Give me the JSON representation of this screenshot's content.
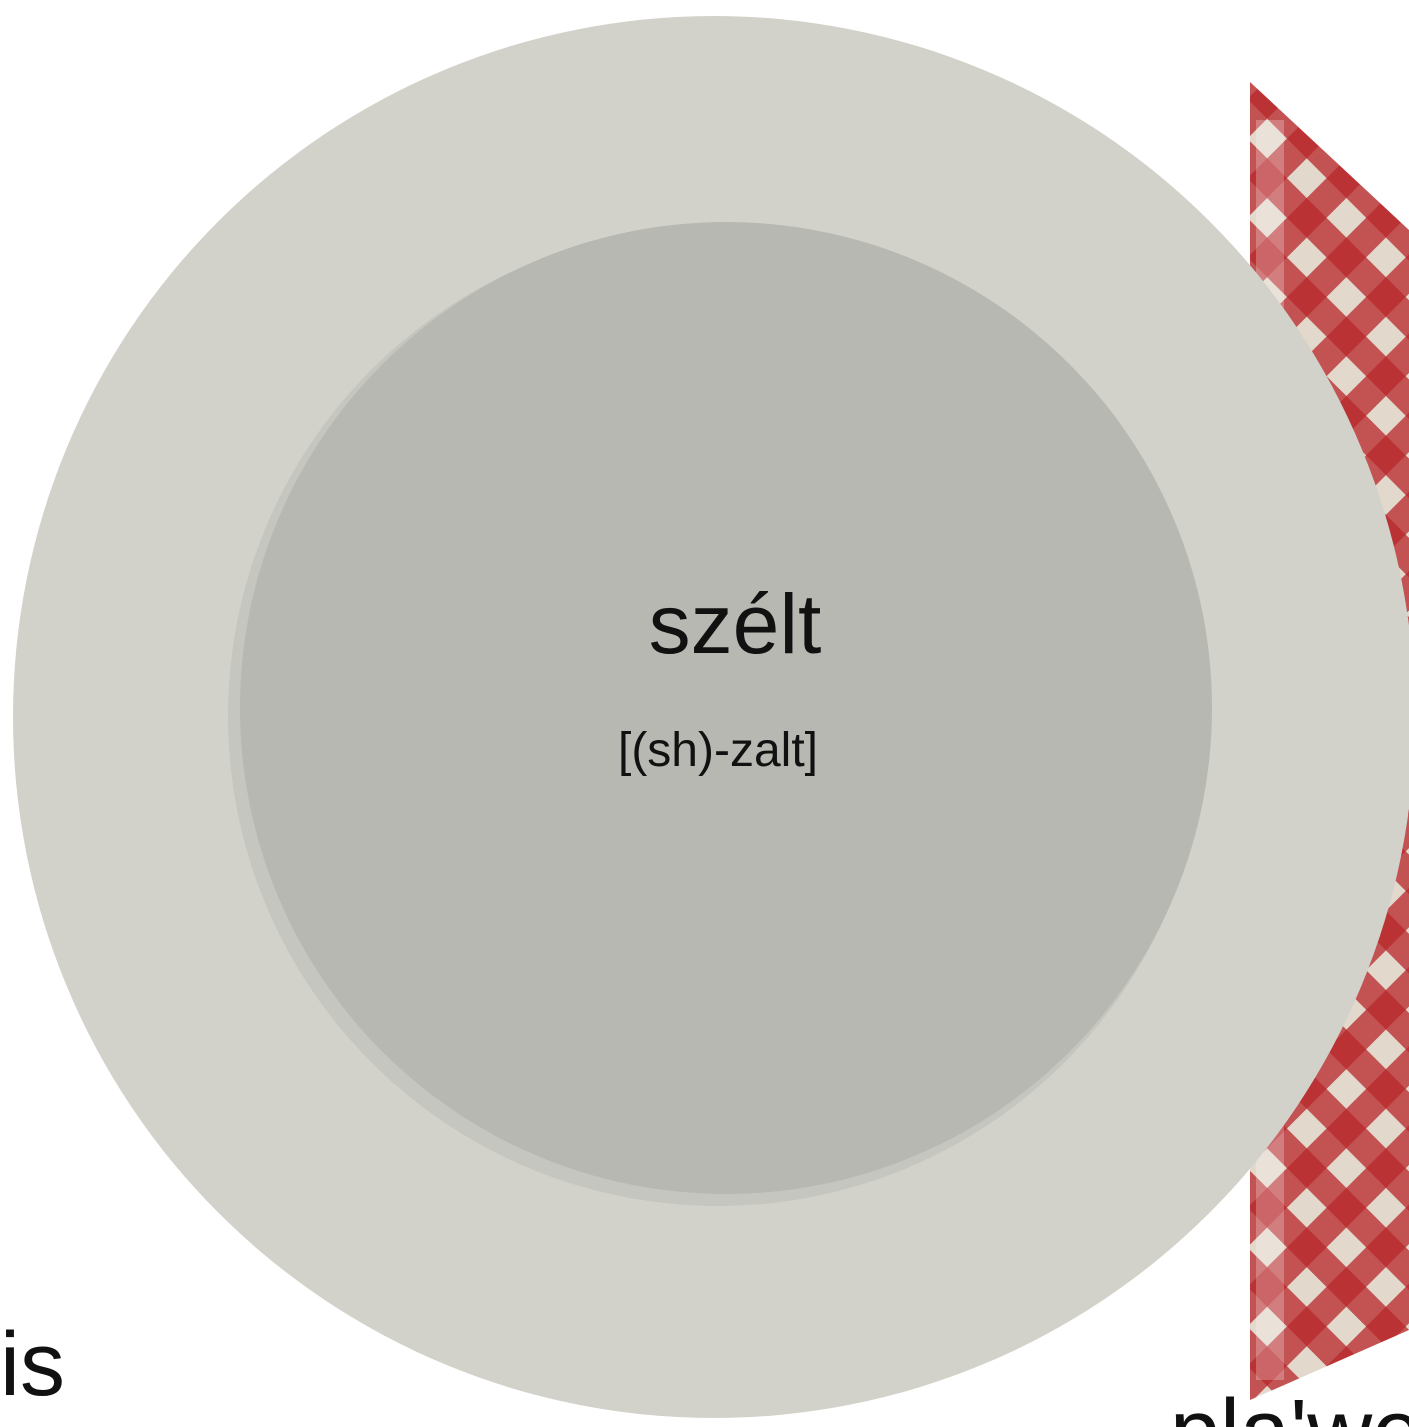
{
  "word": "szélt",
  "pronunciation": "[(sh)-zalt]",
  "left_text": "is",
  "bottom_right_text": "pla'we"
}
